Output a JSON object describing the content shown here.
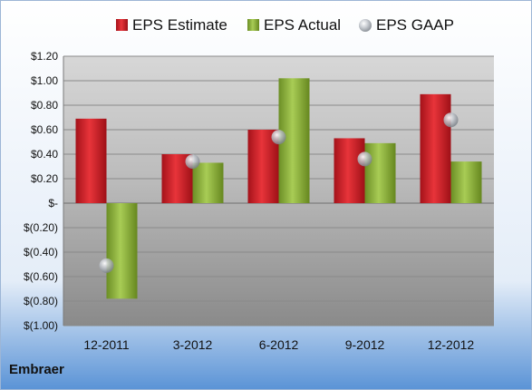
{
  "company": "Embraer",
  "colors": {
    "estimate": "#cc1f26",
    "actual": "#8db43a",
    "gaap": "#b8bcc4"
  },
  "chart_data": {
    "type": "bar",
    "categories": [
      "12-2011",
      "3-2012",
      "6-2012",
      "9-2012",
      "12-2012"
    ],
    "series": [
      {
        "name": "EPS Estimate",
        "kind": "bar",
        "values": [
          0.69,
          0.4,
          0.6,
          0.53,
          0.89
        ]
      },
      {
        "name": "EPS Actual",
        "kind": "bar",
        "values": [
          -0.78,
          0.33,
          1.02,
          0.49,
          0.34
        ]
      },
      {
        "name": "EPS GAAP",
        "kind": "marker",
        "values": [
          -0.51,
          0.34,
          0.54,
          0.36,
          0.68
        ]
      }
    ],
    "ylim": [
      -1.0,
      1.2
    ],
    "yticks": [
      1.2,
      1.0,
      0.8,
      0.6,
      0.4,
      0.2,
      0,
      -0.2,
      -0.4,
      -0.6,
      -0.8,
      -1.0
    ],
    "ytick_labels": [
      "$1.20",
      "$1.00",
      "$0.80",
      "$0.60",
      "$0.40",
      "$0.20",
      "$-",
      "$(0.20)",
      "$(0.40)",
      "$(0.60)",
      "$(0.80)",
      "$(1.00)"
    ],
    "grid": true,
    "legend_position": "top"
  }
}
